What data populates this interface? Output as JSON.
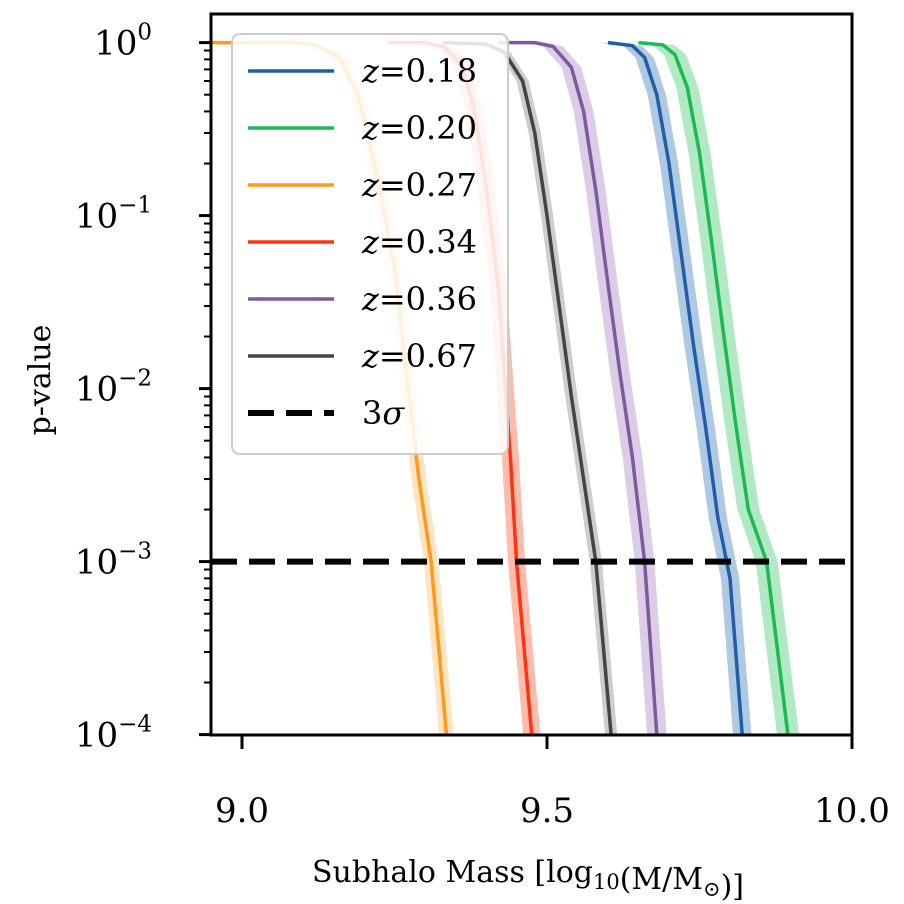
{
  "chart_data": {
    "type": "line",
    "title": "",
    "xlabel": "Subhalo Mass [log₁₀(M/M⊙)]",
    "ylabel": "p-value",
    "xlim": [
      8.95,
      10.0
    ],
    "ylim": [
      0.0001,
      1.5
    ],
    "yscale": "log",
    "grid": false,
    "legend_position": "top-left",
    "x_ticks": [
      9.0,
      9.5,
      10.0
    ],
    "x_tick_labels": [
      "9.0",
      "9.5",
      "10.0"
    ],
    "y_ticks": [
      1,
      0.1,
      0.01,
      0.001,
      0.0001
    ],
    "y_tick_labels": [
      {
        "base": "10",
        "exp": "0"
      },
      {
        "base": "10",
        "exp": "−1"
      },
      {
        "base": "10",
        "exp": "−2"
      },
      {
        "base": "10",
        "exp": "−3"
      },
      {
        "base": "10",
        "exp": "−4"
      }
    ],
    "series": [
      {
        "name": "z=0.18",
        "label_var": "z",
        "label_val": "=0.18",
        "color": "#1f5ea8",
        "band_color": "#8fb2d6",
        "x": [
          9.6,
          9.64,
          9.66,
          9.68,
          9.7,
          9.72,
          9.74,
          9.76,
          9.78,
          9.8,
          9.82
        ],
        "y": [
          1.0,
          0.96,
          0.82,
          0.5,
          0.2,
          0.06,
          0.018,
          0.006,
          0.0018,
          0.0008,
          0.0001
        ],
        "band_halfwidth": 0.015
      },
      {
        "name": "z=0.20",
        "label_var": "z",
        "label_val": "=0.20",
        "color": "#1db954",
        "band_color": "#8fe0aa",
        "x": [
          9.65,
          9.69,
          9.71,
          9.73,
          9.75,
          9.77,
          9.79,
          9.81,
          9.83,
          9.86,
          9.895
        ],
        "y": [
          1.0,
          0.97,
          0.85,
          0.55,
          0.23,
          0.07,
          0.02,
          0.006,
          0.002,
          0.001,
          0.0001
        ],
        "band_halfwidth": 0.018
      },
      {
        "name": "z=0.27",
        "label_var": "z",
        "label_val": "=0.27",
        "color": "#ff9a1a",
        "band_color": "#ffd8a8",
        "x": [
          8.95,
          9.08,
          9.12,
          9.16,
          9.19,
          9.22,
          9.25,
          9.27,
          9.29,
          9.31,
          9.335
        ],
        "y": [
          1.0,
          1.0,
          0.97,
          0.82,
          0.5,
          0.18,
          0.05,
          0.012,
          0.003,
          0.001,
          0.0001
        ],
        "band_halfwidth": 0.012
      },
      {
        "name": "z=0.34",
        "label_var": "z",
        "label_val": "=0.34",
        "color": "#ff3311",
        "band_color": "#ff9f8a",
        "x": [
          9.24,
          9.3,
          9.33,
          9.36,
          9.38,
          9.4,
          9.42,
          9.43,
          9.44,
          9.45,
          9.475
        ],
        "y": [
          1.0,
          1.0,
          0.95,
          0.75,
          0.42,
          0.15,
          0.04,
          0.012,
          0.004,
          0.001,
          0.0001
        ],
        "band_halfwidth": 0.014
      },
      {
        "name": "z=0.36",
        "label_var": "z",
        "label_val": "=0.36",
        "color": "#7d5a9e",
        "band_color": "#ccb8da",
        "x": [
          9.42,
          9.48,
          9.51,
          9.54,
          9.56,
          9.58,
          9.6,
          9.62,
          9.64,
          9.66,
          9.68
        ],
        "y": [
          1.0,
          1.0,
          0.95,
          0.72,
          0.4,
          0.14,
          0.04,
          0.012,
          0.004,
          0.001,
          0.0001
        ],
        "band_halfwidth": 0.016
      },
      {
        "name": "z=0.67",
        "label_var": "z",
        "label_val": "=0.67",
        "color": "#444444",
        "band_color": "#b8b8b8",
        "x": [
          9.33,
          9.4,
          9.43,
          9.46,
          9.48,
          9.5,
          9.52,
          9.54,
          9.56,
          9.58,
          9.605
        ],
        "y": [
          1.0,
          0.98,
          0.88,
          0.6,
          0.3,
          0.1,
          0.03,
          0.009,
          0.003,
          0.001,
          0.0001
        ],
        "band_halfwidth": 0.01
      }
    ],
    "threshold": {
      "name": "3σ",
      "label_main": "3",
      "label_sym": "σ",
      "y": 0.001,
      "color": "#000000",
      "style": "dashed"
    }
  }
}
